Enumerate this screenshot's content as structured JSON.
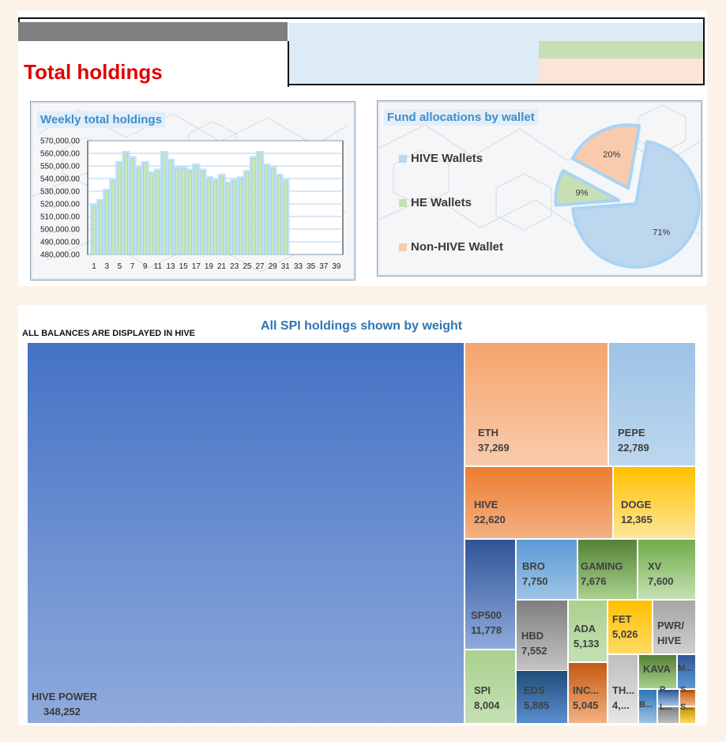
{
  "page": {
    "title": "Total holdings",
    "note": "ALL BALANCES ARE DISPLAYED IN HIVE",
    "treemap_title": "All SPI holdings shown by weight"
  },
  "chart_data": [
    {
      "type": "bar",
      "title": "Weekly total holdings",
      "ylim": [
        480000,
        570000
      ],
      "y_ticks": [
        "570,000.00",
        "560,000.00",
        "550,000.00",
        "540,000.00",
        "530,000.00",
        "520,000.00",
        "510,000.00",
        "500,000.00",
        "490,000.00",
        "480,000.00"
      ],
      "x_ticks": [
        "1",
        "3",
        "5",
        "7",
        "9",
        "11",
        "13",
        "15",
        "17",
        "19",
        "21",
        "23",
        "25",
        "27",
        "29",
        "31",
        "33",
        "35",
        "37",
        "39"
      ],
      "x": [
        1,
        2,
        3,
        4,
        5,
        6,
        7,
        8,
        9,
        10,
        11,
        12,
        13,
        14,
        15,
        16,
        17,
        18,
        19,
        20,
        21,
        22,
        23,
        24,
        25,
        26,
        27,
        28,
        29,
        30,
        31
      ],
      "values": [
        518000,
        522000,
        530000,
        538000,
        552000,
        560000,
        556000,
        548000,
        552000,
        544000,
        546000,
        560000,
        554000,
        548000,
        548000,
        546000,
        550000,
        546000,
        540000,
        538000,
        542000,
        536000,
        538000,
        540000,
        545000,
        556000,
        560000,
        550000,
        548000,
        542000,
        538000
      ],
      "grid": true
    },
    {
      "type": "pie",
      "title": "Fund allocations by wallet",
      "categories": [
        "HIVE Wallets",
        "HE Wallets",
        "Non-HIVE Wallet"
      ],
      "values": [
        71,
        9,
        20
      ],
      "labels": [
        "71%",
        "9%",
        "20%"
      ],
      "colors": [
        "#bdd7ee",
        "#c6e0b4",
        "#f8cbad"
      ],
      "legend": "left"
    },
    {
      "type": "treemap",
      "title": "All SPI holdings shown by weight",
      "items": [
        {
          "name": "HIVE POWER",
          "value": "348,252"
        },
        {
          "name": "ETH",
          "value": "37,269"
        },
        {
          "name": "PEPE",
          "value": "22,789"
        },
        {
          "name": "HIVE",
          "value": "22,620"
        },
        {
          "name": "DOGE",
          "value": "12,365"
        },
        {
          "name": "SP500",
          "value": "11,778"
        },
        {
          "name": "BRO",
          "value": "7,750"
        },
        {
          "name": "GAMING",
          "value": "7,676"
        },
        {
          "name": "XV",
          "value": "7,600"
        },
        {
          "name": "HBD",
          "value": "7,552"
        },
        {
          "name": "ADA",
          "value": "5,133"
        },
        {
          "name": "FET",
          "value": "5,026"
        },
        {
          "name": "PWR/ HIVE",
          "value": ""
        },
        {
          "name": "SPI",
          "value": "8,004"
        },
        {
          "name": "EDS",
          "value": "5,885"
        },
        {
          "name": "INC...",
          "value": "5,045"
        },
        {
          "name": "TH...",
          "value": "4,..."
        },
        {
          "name": "KAVA",
          "value": ""
        },
        {
          "name": "M...",
          "value": ""
        },
        {
          "name": "B...",
          "value": ""
        },
        {
          "name": "P...",
          "value": ""
        },
        {
          "name": "S...",
          "value": ""
        },
        {
          "name": "L...",
          "value": ""
        },
        {
          "name": "S...",
          "value": ""
        }
      ]
    }
  ]
}
